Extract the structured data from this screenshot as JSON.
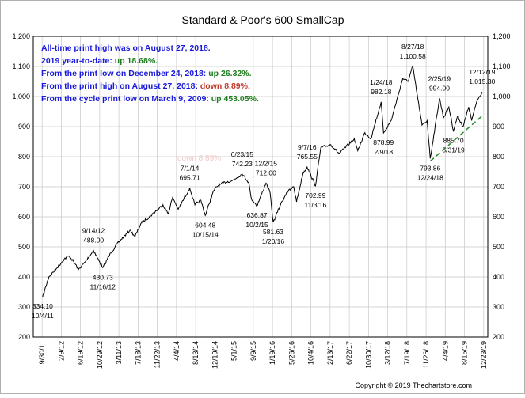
{
  "chart_data": {
    "type": "line",
    "title": "Standard & Poor's 600 SmallCap",
    "ylim": [
      200,
      1200
    ],
    "y_ticks": [
      "200",
      "300",
      "400",
      "500",
      "600",
      "700",
      "800",
      "900",
      "1,000",
      "1,100",
      "1,200"
    ],
    "y_tick_values": [
      200,
      300,
      400,
      500,
      600,
      700,
      800,
      900,
      1000,
      1100,
      1200
    ],
    "x_ticks": [
      "9/30/11",
      "2/9/12",
      "6/19/12",
      "10/29/12",
      "3/11/13",
      "7/18/13",
      "11/22/13",
      "4/4/14",
      "8/13/14",
      "12/19/14",
      "5/1/15",
      "9/9/15",
      "1/19/16",
      "5/26/16",
      "10/4/16",
      "2/13/17",
      "6/22/17",
      "10/30/17",
      "3/12/18",
      "7/19/18",
      "11/26/18",
      "4/4/19",
      "8/15/19",
      "12/23/19"
    ],
    "grid": true,
    "series": [
      {
        "color": "#000000",
        "points": [
          {
            "x": "2011-10-04",
            "y": 334.1
          },
          {
            "x": "2011-11-15",
            "y": 400
          },
          {
            "x": "2012-01-10",
            "y": 430
          },
          {
            "x": "2012-02-28",
            "y": 460
          },
          {
            "x": "2012-04-02",
            "y": 470
          },
          {
            "x": "2012-05-10",
            "y": 445
          },
          {
            "x": "2012-06-04",
            "y": 425
          },
          {
            "x": "2012-07-20",
            "y": 450
          },
          {
            "x": "2012-09-14",
            "y": 488.0
          },
          {
            "x": "2012-10-20",
            "y": 455
          },
          {
            "x": "2012-11-16",
            "y": 430.73
          },
          {
            "x": "2013-01-10",
            "y": 480
          },
          {
            "x": "2013-03-11",
            "y": 520
          },
          {
            "x": "2013-05-20",
            "y": 555
          },
          {
            "x": "2013-06-24",
            "y": 535
          },
          {
            "x": "2013-08-05",
            "y": 580
          },
          {
            "x": "2013-09-30",
            "y": 600
          },
          {
            "x": "2013-12-31",
            "y": 640
          },
          {
            "x": "2014-02-04",
            "y": 610
          },
          {
            "x": "2014-03-07",
            "y": 665
          },
          {
            "x": "2014-04-14",
            "y": 625
          },
          {
            "x": "2014-07-01",
            "y": 695.71
          },
          {
            "x": "2014-08-05",
            "y": 640
          },
          {
            "x": "2014-09-15",
            "y": 655
          },
          {
            "x": "2014-10-15",
            "y": 604.48
          },
          {
            "x": "2014-12-05",
            "y": 680
          },
          {
            "x": "2014-12-29",
            "y": 700
          },
          {
            "x": "2015-02-25",
            "y": 715
          },
          {
            "x": "2015-04-15",
            "y": 720
          },
          {
            "x": "2015-06-23",
            "y": 742.23
          },
          {
            "x": "2015-08-06",
            "y": 715
          },
          {
            "x": "2015-08-25",
            "y": 660
          },
          {
            "x": "2015-10-02",
            "y": 636.87
          },
          {
            "x": "2015-12-02",
            "y": 712.0
          },
          {
            "x": "2015-12-30",
            "y": 680
          },
          {
            "x": "2016-01-20",
            "y": 581.63
          },
          {
            "x": "2016-03-10",
            "y": 640
          },
          {
            "x": "2016-04-20",
            "y": 680
          },
          {
            "x": "2016-06-08",
            "y": 700
          },
          {
            "x": "2016-06-27",
            "y": 650
          },
          {
            "x": "2016-08-10",
            "y": 745
          },
          {
            "x": "2016-09-07",
            "y": 765.55
          },
          {
            "x": "2016-11-03",
            "y": 702.99
          },
          {
            "x": "2016-12-09",
            "y": 830
          },
          {
            "x": "2017-02-15",
            "y": 840
          },
          {
            "x": "2017-04-13",
            "y": 810
          },
          {
            "x": "2017-07-25",
            "y": 860
          },
          {
            "x": "2017-08-18",
            "y": 820
          },
          {
            "x": "2017-10-05",
            "y": 880
          },
          {
            "x": "2017-11-15",
            "y": 860
          },
          {
            "x": "2018-01-24",
            "y": 982.18
          },
          {
            "x": "2018-02-09",
            "y": 878.99
          },
          {
            "x": "2018-04-02",
            "y": 920
          },
          {
            "x": "2018-06-20",
            "y": 1060
          },
          {
            "x": "2018-07-25",
            "y": 1050
          },
          {
            "x": "2018-08-27",
            "y": 1100.58
          },
          {
            "x": "2018-10-11",
            "y": 960
          },
          {
            "x": "2018-10-29",
            "y": 905
          },
          {
            "x": "2018-12-03",
            "y": 920
          },
          {
            "x": "2018-12-24",
            "y": 793.86
          },
          {
            "x": "2019-02-25",
            "y": 994.0
          },
          {
            "x": "2019-03-25",
            "y": 930
          },
          {
            "x": "2019-04-30",
            "y": 965
          },
          {
            "x": "2019-05-31",
            "y": 885.7
          },
          {
            "x": "2019-06-28",
            "y": 935
          },
          {
            "x": "2019-08-05",
            "y": 900
          },
          {
            "x": "2019-09-12",
            "y": 965
          },
          {
            "x": "2019-10-02",
            "y": 920
          },
          {
            "x": "2019-11-07",
            "y": 985
          },
          {
            "x": "2019-12-12",
            "y": 1015.3
          }
        ]
      }
    ],
    "trendline": {
      "color": "#2e8b2e",
      "style": "dashed",
      "from": {
        "x": "2018-12-24",
        "y": 785
      },
      "to": {
        "x": "2019-12-23",
        "y": 940
      }
    },
    "annotations": [
      {
        "date_label": "10/4/11",
        "value_label": "334.10",
        "x": "2011-10-04",
        "y": 334.1,
        "color": "#000000",
        "pos": "below"
      },
      {
        "date_label": "9/14/12",
        "value_label": "488.00",
        "x": "2012-09-14",
        "y": 488.0,
        "color": "#000000",
        "pos": "above"
      },
      {
        "date_label": "11/16/12",
        "value_label": "430.73",
        "x": "2012-11-16",
        "y": 430.73,
        "color": "#000000",
        "pos": "below"
      },
      {
        "date_label": "7/1/14",
        "value_label": "695.71",
        "x": "2014-07-01",
        "y": 695.71,
        "color": "#000000",
        "pos": "above"
      },
      {
        "date_label": "10/15/14",
        "value_label": "604.48",
        "x": "2014-10-15",
        "y": 604.48,
        "color": "#000000",
        "pos": "below"
      },
      {
        "date_label": "6/23/15",
        "value_label": "742.23",
        "x": "2015-06-23",
        "y": 742.23,
        "color": "#000000",
        "pos": "above"
      },
      {
        "date_label": "12/2/15",
        "value_label": "712.00",
        "x": "2015-12-02",
        "y": 712.0,
        "color": "#000000",
        "pos": "above"
      },
      {
        "date_label": "10/2/15",
        "value_label": "636.87",
        "x": "2015-10-02",
        "y": 636.87,
        "color": "#000000",
        "pos": "below"
      },
      {
        "date_label": "1/20/16",
        "value_label": "581.63",
        "x": "2016-01-20",
        "y": 581.63,
        "color": "#000000",
        "pos": "below"
      },
      {
        "date_label": "9/7/16",
        "value_label": "765.55",
        "x": "2016-09-07",
        "y": 765.55,
        "color": "#000000",
        "pos": "above"
      },
      {
        "date_label": "11/3/16",
        "value_label": "702.99",
        "x": "2016-11-03",
        "y": 702.99,
        "color": "#000000",
        "pos": "below"
      },
      {
        "date_label": "1/24/18",
        "value_label": "982.18",
        "x": "2018-01-24",
        "y": 982.18,
        "color": "#000000",
        "pos": "above"
      },
      {
        "date_label": "2/9/18",
        "value_label": "878.99",
        "x": "2018-02-09",
        "y": 878.99,
        "color": "#000000",
        "pos": "below"
      },
      {
        "date_label": "8/27/18",
        "value_label": "1,100.58",
        "x": "2018-08-27",
        "y": 1100.58,
        "color": "#000000",
        "pos": "above"
      },
      {
        "date_label": "12/24/18",
        "value_label": "793.86",
        "x": "2018-12-24",
        "y": 793.86,
        "color": "#000000",
        "pos": "below"
      },
      {
        "date_label": "2/25/19",
        "value_label": "994.00",
        "x": "2019-02-25",
        "y": 994.0,
        "color": "#000000",
        "pos": "above"
      },
      {
        "date_label": "5/31/19",
        "value_label": "885.70",
        "x": "2019-05-31",
        "y": 885.7,
        "color": "#000000",
        "pos": "below"
      },
      {
        "date_label": "12/12/19",
        "value_label": "1,015.30",
        "x": "2019-12-12",
        "y": 1015.3,
        "color": "#000000",
        "pos": "above"
      }
    ],
    "faint_annotation": "down 8.89%"
  },
  "info_lines": [
    {
      "text": "All-time print high was on August 27, 2018.",
      "color": "#1a1adc",
      "suffix": "",
      "suffix_color": ""
    },
    {
      "text": "2019 year-to-date: ",
      "color": "#1a1adc",
      "suffix": "up 18.68%.",
      "suffix_color": "#1e7d1e"
    },
    {
      "text": "From the print low on December 24, 2018: ",
      "color": "#1a1adc",
      "suffix": "up 26.32%.",
      "suffix_color": "#1e7d1e"
    },
    {
      "text": "From the print high on August 27, 2018: ",
      "color": "#1a1adc",
      "suffix": "down 8.89%.",
      "suffix_color": "#c0392b"
    },
    {
      "text": "From the cycle print low on March 9, 2009: ",
      "color": "#1a1adc",
      "suffix": "up 453.05%.",
      "suffix_color": "#1e7d1e"
    }
  ],
  "copyright": "Copyright © 2019 Thechartstore.com"
}
